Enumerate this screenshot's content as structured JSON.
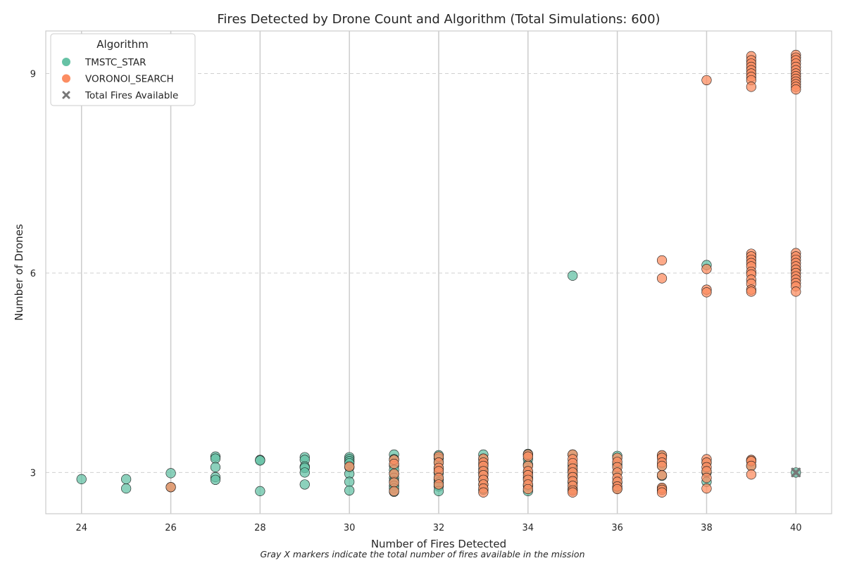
{
  "chart_data": {
    "type": "scatter",
    "title": "Fires Detected by Drone Count and Algorithm (Total Simulations: 600)",
    "xlabel": "Number of Fires Detected",
    "ylabel": "Number of Drones",
    "caption": "Gray X markers indicate the total number of fires available in the mission",
    "xlim": [
      23.2,
      40.8
    ],
    "ylim": [
      2.38,
      9.64
    ],
    "x_ticks": [
      24,
      26,
      28,
      30,
      32,
      34,
      36,
      38,
      40
    ],
    "y_ticks": [
      3,
      6,
      9
    ],
    "grid": {
      "x": "solid",
      "y": "dashed"
    },
    "legend": {
      "title": "Algorithm",
      "placement": "top-left",
      "entries": [
        {
          "label": "TMSTC_STAR",
          "marker": "circle",
          "color": "#66c2a5"
        },
        {
          "label": "VORONOI_SEARCH",
          "marker": "circle",
          "color": "#fc8d62"
        },
        {
          "label": "Total Fires Available",
          "marker": "x",
          "color": "#777777"
        }
      ]
    },
    "series": [
      {
        "name": "TMSTC_STAR",
        "color": "#66c2a5",
        "points": [
          [
            24,
            2.9
          ],
          [
            25,
            2.9
          ],
          [
            25,
            2.76
          ],
          [
            26,
            2.99
          ],
          [
            26,
            2.78
          ],
          [
            27,
            3.24
          ],
          [
            27,
            3.21
          ],
          [
            27,
            3.08
          ],
          [
            27,
            2.93
          ],
          [
            27,
            2.89
          ],
          [
            28,
            3.19
          ],
          [
            28,
            3.18
          ],
          [
            28,
            2.72
          ],
          [
            29,
            3.23
          ],
          [
            29,
            3.19
          ],
          [
            29,
            3.09
          ],
          [
            29,
            3.07
          ],
          [
            29,
            3.0
          ],
          [
            29,
            2.82
          ],
          [
            30,
            3.23
          ],
          [
            30,
            3.2
          ],
          [
            30,
            3.17
          ],
          [
            30,
            3.14
          ],
          [
            30,
            3.08
          ],
          [
            30,
            2.98
          ],
          [
            30,
            2.86
          ],
          [
            30,
            2.73
          ],
          [
            31,
            3.27
          ],
          [
            31,
            3.2
          ],
          [
            31,
            3.1
          ],
          [
            31,
            3.04
          ],
          [
            31,
            2.98
          ],
          [
            31,
            2.92
          ],
          [
            31,
            2.87
          ],
          [
            31,
            2.8
          ],
          [
            31,
            2.76
          ],
          [
            31,
            2.71
          ],
          [
            32,
            3.26
          ],
          [
            32,
            3.21
          ],
          [
            32,
            3.15
          ],
          [
            32,
            3.06
          ],
          [
            32,
            2.99
          ],
          [
            32,
            2.9
          ],
          [
            32,
            2.85
          ],
          [
            32,
            2.79
          ],
          [
            32,
            2.72
          ],
          [
            33,
            3.27
          ],
          [
            33,
            3.2
          ],
          [
            33,
            3.12
          ],
          [
            33,
            3.05
          ],
          [
            33,
            2.98
          ],
          [
            33,
            2.9
          ],
          [
            33,
            2.82
          ],
          [
            33,
            2.74
          ],
          [
            34,
            3.28
          ],
          [
            34,
            3.2
          ],
          [
            34,
            3.12
          ],
          [
            34,
            3.0
          ],
          [
            34,
            2.92
          ],
          [
            34,
            2.8
          ],
          [
            34,
            2.72
          ],
          [
            35,
            5.96
          ],
          [
            35,
            3.27
          ],
          [
            35,
            3.1
          ],
          [
            35,
            3.02
          ],
          [
            35,
            2.95
          ],
          [
            35,
            2.85
          ],
          [
            35,
            2.75
          ],
          [
            36,
            3.25
          ],
          [
            36,
            3.12
          ],
          [
            36,
            3.0
          ],
          [
            36,
            2.85
          ],
          [
            36,
            2.76
          ],
          [
            37,
            3.25
          ],
          [
            37,
            3.1
          ],
          [
            37,
            2.95
          ],
          [
            37,
            2.76
          ],
          [
            38,
            6.12
          ],
          [
            38,
            3.15
          ],
          [
            38,
            3.0
          ],
          [
            38,
            2.86
          ],
          [
            39,
            3.18
          ],
          [
            39,
            3.1
          ],
          [
            40,
            6.05
          ],
          [
            40,
            3.0
          ]
        ]
      },
      {
        "name": "VORONOI_SEARCH",
        "color": "#fc8d62",
        "points": [
          [
            26,
            2.78
          ],
          [
            30,
            3.09
          ],
          [
            31,
            3.19
          ],
          [
            31,
            3.13
          ],
          [
            31,
            2.98
          ],
          [
            31,
            2.85
          ],
          [
            31,
            2.72
          ],
          [
            32,
            3.24
          ],
          [
            32,
            3.15
          ],
          [
            32,
            3.07
          ],
          [
            32,
            3.02
          ],
          [
            32,
            2.92
          ],
          [
            32,
            2.82
          ],
          [
            33,
            3.21
          ],
          [
            33,
            3.15
          ],
          [
            33,
            3.1
          ],
          [
            33,
            3.02
          ],
          [
            33,
            2.96
          ],
          [
            33,
            2.89
          ],
          [
            33,
            2.82
          ],
          [
            33,
            2.76
          ],
          [
            33,
            2.7
          ],
          [
            34,
            3.27
          ],
          [
            34,
            3.24
          ],
          [
            34,
            3.1
          ],
          [
            34,
            3.02
          ],
          [
            34,
            2.96
          ],
          [
            34,
            2.89
          ],
          [
            34,
            2.82
          ],
          [
            34,
            2.75
          ],
          [
            35,
            3.27
          ],
          [
            35,
            3.2
          ],
          [
            35,
            3.14
          ],
          [
            35,
            3.06
          ],
          [
            35,
            3.0
          ],
          [
            35,
            2.93
          ],
          [
            35,
            2.87
          ],
          [
            35,
            2.8
          ],
          [
            35,
            2.73
          ],
          [
            35,
            2.7
          ],
          [
            36,
            3.22
          ],
          [
            36,
            3.16
          ],
          [
            36,
            3.08
          ],
          [
            36,
            3.0
          ],
          [
            36,
            2.92
          ],
          [
            36,
            2.86
          ],
          [
            36,
            2.79
          ],
          [
            36,
            2.75
          ],
          [
            37,
            6.19
          ],
          [
            37,
            5.92
          ],
          [
            37,
            3.26
          ],
          [
            37,
            3.22
          ],
          [
            37,
            3.15
          ],
          [
            37,
            3.1
          ],
          [
            37,
            2.96
          ],
          [
            37,
            2.77
          ],
          [
            37,
            2.74
          ],
          [
            37,
            2.7
          ],
          [
            38,
            8.9
          ],
          [
            38,
            6.06
          ],
          [
            38,
            5.75
          ],
          [
            38,
            5.71
          ],
          [
            38,
            3.2
          ],
          [
            38,
            3.15
          ],
          [
            38,
            3.08
          ],
          [
            38,
            3.02
          ],
          [
            38,
            2.92
          ],
          [
            38,
            2.76
          ],
          [
            39,
            9.26
          ],
          [
            39,
            9.2
          ],
          [
            39,
            9.15
          ],
          [
            39,
            9.1
          ],
          [
            39,
            9.05
          ],
          [
            39,
            9.0
          ],
          [
            39,
            8.95
          ],
          [
            39,
            8.9
          ],
          [
            39,
            8.8
          ],
          [
            39,
            6.29
          ],
          [
            39,
            6.25
          ],
          [
            39,
            6.2
          ],
          [
            39,
            6.15
          ],
          [
            39,
            6.1
          ],
          [
            39,
            6.02
          ],
          [
            39,
            5.98
          ],
          [
            39,
            5.9
          ],
          [
            39,
            5.84
          ],
          [
            39,
            5.75
          ],
          [
            39,
            5.72
          ],
          [
            39,
            3.19
          ],
          [
            39,
            3.17
          ],
          [
            39,
            3.1
          ],
          [
            39,
            2.97
          ],
          [
            40,
            9.28
          ],
          [
            40,
            9.24
          ],
          [
            40,
            9.2
          ],
          [
            40,
            9.15
          ],
          [
            40,
            9.1
          ],
          [
            40,
            9.05
          ],
          [
            40,
            9.0
          ],
          [
            40,
            8.96
          ],
          [
            40,
            8.92
          ],
          [
            40,
            8.88
          ],
          [
            40,
            8.84
          ],
          [
            40,
            8.8
          ],
          [
            40,
            8.76
          ],
          [
            40,
            6.3
          ],
          [
            40,
            6.25
          ],
          [
            40,
            6.2
          ],
          [
            40,
            6.15
          ],
          [
            40,
            6.1
          ],
          [
            40,
            6.05
          ],
          [
            40,
            6.0
          ],
          [
            40,
            5.95
          ],
          [
            40,
            5.9
          ],
          [
            40,
            5.85
          ],
          [
            40,
            5.8
          ],
          [
            40,
            5.72
          ]
        ]
      },
      {
        "name": "Total Fires Available",
        "color": "#777777",
        "marker": "x",
        "points": [
          [
            40,
            3.0
          ]
        ]
      }
    ]
  }
}
